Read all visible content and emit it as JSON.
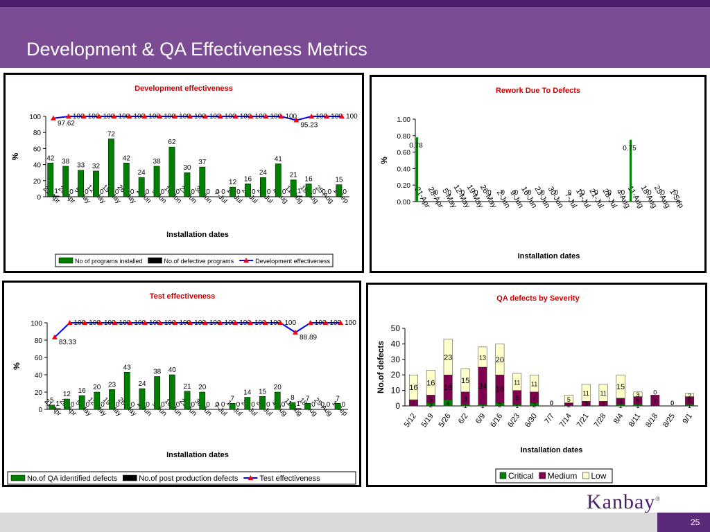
{
  "slide": {
    "title": "Development & QA Effectiveness Metrics",
    "page_number": "25",
    "logo_text": "Kanbay",
    "logo_mark": "®"
  },
  "colors": {
    "header": "#7b4b94",
    "header_dark": "#4b1e6b",
    "title_red": "#cc0000",
    "bar_green": "#008000",
    "bar_black": "#000000",
    "line_blue": "#0000ff",
    "marker_red": "#ff0000",
    "critical": "#008000",
    "medium": "#800050",
    "low": "#ffffcc"
  },
  "chart_data": [
    {
      "type": "bar",
      "title": "Development effectiveness",
      "xlabel": "Installation dates",
      "ylabel": "%",
      "ylim": [
        0,
        100
      ],
      "yticks": [
        0,
        20,
        40,
        60,
        80,
        100
      ],
      "categories": [
        "21-Apr",
        "28-Apr",
        "5-May",
        "12-May",
        "19-May",
        "26-May",
        "2-Jun",
        "9-Jun",
        "16-Jun",
        "23-Jun",
        "30-Jun",
        "7-Jul",
        "14-Jul",
        "21-Jul",
        "28-Jul",
        "4-Aug",
        "11-Aug",
        "18-Aug",
        "25-Aug",
        "1-Sep"
      ],
      "series": [
        {
          "name": "No of programs installed",
          "kind": "bar",
          "color": "#008000",
          "values": [
            42,
            38,
            33,
            32,
            72,
            42,
            24,
            38,
            62,
            30,
            37,
            0,
            12,
            16,
            24,
            41,
            21,
            16,
            0,
            15
          ],
          "labels": [
            "42",
            "38",
            "33",
            "32",
            "72",
            "42",
            "24",
            "38",
            "62",
            "30",
            "37",
            "0",
            "12",
            "16",
            "24",
            "41",
            "21",
            "16",
            "0",
            "15"
          ]
        },
        {
          "name": "No.of defective programs",
          "kind": "bar",
          "color": "#000000",
          "values": [
            1,
            0,
            0,
            0,
            0,
            0,
            0,
            0,
            0,
            0,
            0,
            0,
            0,
            0,
            0,
            0,
            1,
            0,
            0,
            0
          ],
          "labels": [
            "1",
            "0",
            "0",
            "0",
            "0",
            "0",
            "0",
            "0",
            "0",
            "0",
            "0",
            "0",
            "0",
            "0",
            "0",
            "0",
            "1",
            "0",
            "0",
            "0"
          ]
        },
        {
          "name": "Development effectiveness",
          "kind": "line",
          "color": "#0000ff",
          "values": [
            97.62,
            100,
            100,
            100,
            100,
            100,
            100,
            100,
            100,
            100,
            100,
            100,
            100,
            100,
            100,
            100,
            95.23,
            100,
            100,
            100
          ],
          "labels": [
            "97.62",
            "100",
            "100",
            "100",
            "100",
            "100",
            "100",
            "100",
            "100",
            "100",
            "100",
            "100",
            "100",
            "100",
            "100",
            "100",
            "95.23",
            "100",
            "100",
            "100"
          ]
        }
      ],
      "legend_position": "bottom"
    },
    {
      "type": "bar",
      "title": "Rework Due To Defects",
      "xlabel": "Installation dates",
      "ylabel": "%",
      "ylim": [
        0,
        1
      ],
      "yticks": [
        "0.00",
        "0.20",
        "0.40",
        "0.60",
        "0.80",
        "1.00"
      ],
      "categories": [
        "21-Apr",
        "28-Apr",
        "5-May",
        "12-May",
        "19-May",
        "26-May",
        "2-Jun",
        "9-Jun",
        "16-Jun",
        "23-Jun",
        "30-Jun",
        "7-Jul",
        "14-Jul",
        "21-Jul",
        "28-Jul",
        "4-Aug",
        "11-Aug",
        "18-Aug",
        "25-Aug",
        "1-Sep"
      ],
      "values": [
        0.78,
        0,
        0,
        0,
        0,
        0,
        0,
        0,
        0,
        0,
        0,
        0,
        0,
        0,
        0,
        0,
        0.75,
        0,
        0,
        0
      ],
      "labels": [
        "0.78",
        "0",
        "0",
        "0",
        "0",
        "0",
        "0",
        "0",
        "0",
        "0",
        "0",
        "0",
        "0",
        "0",
        "0",
        "0",
        "0.75",
        "0",
        "0",
        "0"
      ]
    },
    {
      "type": "bar",
      "title": "Test effectiveness",
      "xlabel": "Installation dates",
      "ylabel": "%",
      "ylim": [
        0,
        100
      ],
      "yticks": [
        0,
        20,
        40,
        60,
        80,
        100
      ],
      "categories": [
        "21-Apr",
        "28-Apr",
        "5-May",
        "12-May",
        "19-May",
        "26-May",
        "2-Jun",
        "9-Jun",
        "16-Jun",
        "23-Jun",
        "30-Jun",
        "7-Jul",
        "14-Jul",
        "21-Jul",
        "28-Jul",
        "4-Aug",
        "11-Aug",
        "18-Aug",
        "25-Aug",
        "1-Sep"
      ],
      "series": [
        {
          "name": "No.of QA identified defects",
          "kind": "bar",
          "color": "#008000",
          "values": [
            5,
            12,
            16,
            20,
            23,
            43,
            24,
            38,
            40,
            21,
            20,
            0,
            7,
            14,
            15,
            20,
            8,
            7,
            0,
            7
          ],
          "labels": [
            "5",
            "12",
            "16",
            "20",
            "23",
            "43",
            "24",
            "38",
            "40",
            "21",
            "20",
            "0",
            "7",
            "14",
            "15",
            "20",
            "8",
            "7",
            "0",
            "7"
          ]
        },
        {
          "name": "No.of post production defects",
          "kind": "bar",
          "color": "#000000",
          "values": [
            1,
            0,
            0,
            0,
            0,
            0,
            0,
            0,
            0,
            0,
            0,
            0,
            0,
            0,
            0,
            0,
            1,
            0,
            0,
            0
          ],
          "labels": [
            "1",
            "0",
            "0",
            "0",
            "0",
            "0",
            "0",
            "0",
            "0",
            "0",
            "0",
            "0",
            "0",
            "0",
            "0",
            "0",
            "1",
            "0",
            "0",
            "0"
          ]
        },
        {
          "name": "Test effectiveness",
          "kind": "line",
          "color": "#0000ff",
          "values": [
            83.33,
            100,
            100,
            100,
            100,
            100,
            100,
            100,
            100,
            100,
            100,
            100,
            100,
            100,
            100,
            100,
            88.89,
            100,
            100,
            100
          ],
          "labels": [
            "83.33",
            "100",
            "100",
            "100",
            "100",
            "100",
            "100",
            "100",
            "100",
            "100",
            "100",
            "100",
            "100",
            "100",
            "100",
            "100",
            "88.89",
            "100",
            "100",
            "100"
          ]
        }
      ],
      "legend_position": "bottom"
    },
    {
      "type": "bar",
      "stacked": true,
      "title": "QA defects by Severity",
      "xlabel": "Installation dates",
      "ylabel": "No.of defects",
      "ylim": [
        0,
        50
      ],
      "yticks": [
        0,
        10,
        20,
        30,
        40,
        50
      ],
      "categories": [
        "5/12",
        "5/19",
        "5/26",
        "6/2",
        "6/9",
        "6/16",
        "6/23",
        "6/30",
        "7/7",
        "7/14",
        "7/21",
        "7/28",
        "8/4",
        "8/11",
        "8/18",
        "8/25",
        "9/1"
      ],
      "series": [
        {
          "name": "Critical",
          "color": "#008000",
          "values": [
            0,
            2,
            4,
            1,
            1,
            2,
            1,
            2,
            0,
            0,
            0,
            0,
            1,
            1,
            0,
            0,
            1
          ],
          "labels": [
            "0",
            "2",
            "4",
            "1",
            "1",
            "2",
            "1",
            "2",
            "0",
            "0",
            "0",
            "0",
            "1",
            "1",
            "0",
            "0",
            "1"
          ]
        },
        {
          "name": "Medium",
          "color": "#800050",
          "values": [
            4,
            5,
            16,
            8,
            24,
            18,
            9,
            7,
            0,
            2,
            3,
            3,
            4,
            5,
            7,
            0,
            5
          ],
          "labels": [
            "4",
            "5",
            "16",
            "8",
            "24",
            "18",
            "9",
            "7",
            "0",
            "2",
            "3",
            "3",
            "4",
            "5",
            "7",
            "0",
            "5"
          ]
        },
        {
          "name": "Low",
          "color": "#ffffcc",
          "values": [
            16,
            16,
            23,
            15,
            13,
            20,
            11,
            11,
            0,
            5,
            11,
            11,
            15,
            3,
            0,
            0,
            2
          ],
          "labels": [
            "16",
            "16",
            "23",
            "15",
            "13",
            "20",
            "11",
            "11",
            "0",
            "5",
            "11",
            "11",
            "15",
            "3",
            "0",
            "0",
            "2"
          ]
        }
      ],
      "legend_position": "bottom"
    }
  ]
}
